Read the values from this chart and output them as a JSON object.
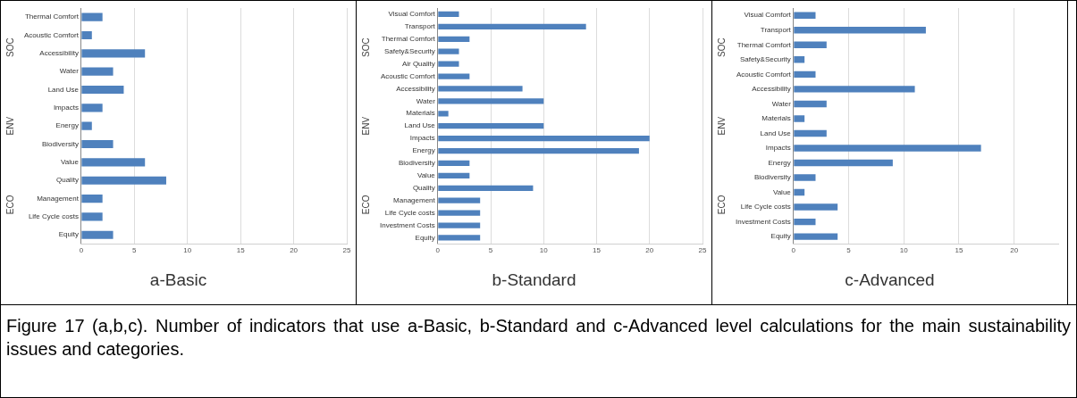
{
  "chart_data": [
    {
      "type": "bar",
      "orientation": "horizontal",
      "xlabel": "a-Basic",
      "categories": [
        "Thermal Comfort",
        "Acoustic Comfort",
        "Accessibility",
        "Water",
        "Land Use",
        "Impacts",
        "Energy",
        "Biodiversity",
        "Value",
        "Quality",
        "Management",
        "Life Cycle costs",
        "Equity"
      ],
      "values": [
        2,
        1,
        6,
        3,
        4,
        2,
        1,
        3,
        6,
        8,
        2,
        2,
        3
      ],
      "color": "#4f81bd",
      "xlim": [
        0,
        25
      ],
      "xticks": [
        0,
        5,
        10,
        15,
        20,
        25
      ],
      "grid": "x",
      "annotations": [
        "SOC",
        "ENV",
        "ECO",
        "Figure 17 (a,b,c). Number of indicators that use a-Basic, b-Standard and c-Advanced level calculations for the main sustainability issues and categories."
      ]
    },
    {
      "type": "bar",
      "orientation": "horizontal",
      "xlabel": "b-Standard",
      "categories": [
        "Visual Comfort",
        "Transport",
        "Thermal Comfort",
        "Safety&Security",
        "Air Quality",
        "Acoustic Comfort",
        "Accessibility",
        "Water",
        "Materials",
        "Land Use",
        "Impacts",
        "Energy",
        "Biodiversity",
        "Value",
        "Quality",
        "Management",
        "Life Cycle costs",
        "Investment Costs",
        "Equity"
      ],
      "values": [
        2,
        14,
        3,
        2,
        2,
        3,
        8,
        10,
        1,
        10,
        20,
        19,
        3,
        3,
        9,
        4,
        4,
        4,
        4
      ],
      "color": "#4f81bd",
      "xlim": [
        0,
        25
      ],
      "xticks": [
        0,
        5,
        10,
        15,
        20,
        25
      ],
      "grid": "x",
      "annotations": [
        "SOC",
        "ENV",
        "ECO"
      ]
    },
    {
      "type": "bar",
      "orientation": "horizontal",
      "xlabel": "c-Advanced",
      "categories": [
        "Visual Comfort",
        "Transport",
        "Thermal Comfort",
        "Safety&Security",
        "Acoustic Comfort",
        "Accessibility",
        "Water",
        "Materials",
        "Land Use",
        "Impacts",
        "Energy",
        "Biodiversity",
        "Value",
        "Life Cycle costs",
        "Investment Costs",
        "Equity"
      ],
      "values": [
        2,
        12,
        3,
        1,
        2,
        11,
        3,
        1,
        3,
        17,
        9,
        2,
        1,
        4,
        2,
        4
      ],
      "color": "#4f81bd",
      "xlim": [
        0,
        24
      ],
      "xticks": [
        0,
        5,
        10,
        15,
        20
      ],
      "grid": "x",
      "annotations": [
        "SOC",
        "ENV",
        "ECO"
      ]
    }
  ]
}
